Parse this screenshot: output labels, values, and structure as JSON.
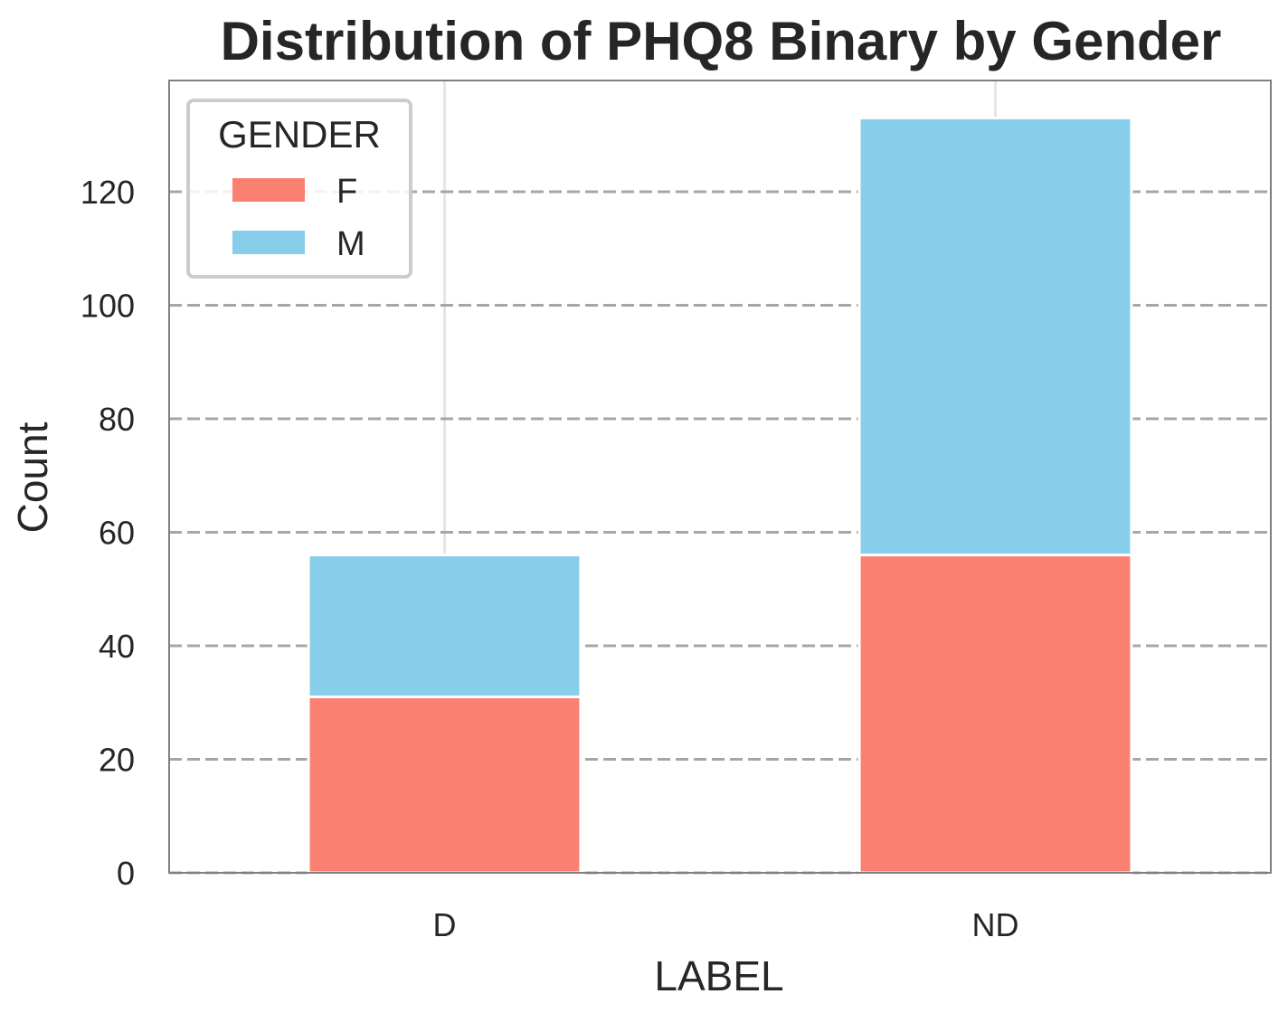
{
  "chart_data": {
    "type": "bar",
    "stacked": true,
    "title": "Distribution of PHQ8 Binary by Gender",
    "xlabel": "LABEL",
    "ylabel": "Count",
    "categories": [
      "D",
      "ND"
    ],
    "series": [
      {
        "name": "F",
        "values": [
          31,
          56
        ],
        "color": "#FA8072"
      },
      {
        "name": "M",
        "values": [
          25,
          77
        ],
        "color": "#87CEEB"
      }
    ],
    "ylim": [
      0,
      139.6
    ],
    "yticks": [
      0,
      20,
      40,
      60,
      80,
      100,
      120
    ],
    "grid": {
      "y": true,
      "style": "dashed",
      "color": "#A6A6A6"
    },
    "legend": {
      "title": "GENDER",
      "placement": "top-left"
    }
  }
}
